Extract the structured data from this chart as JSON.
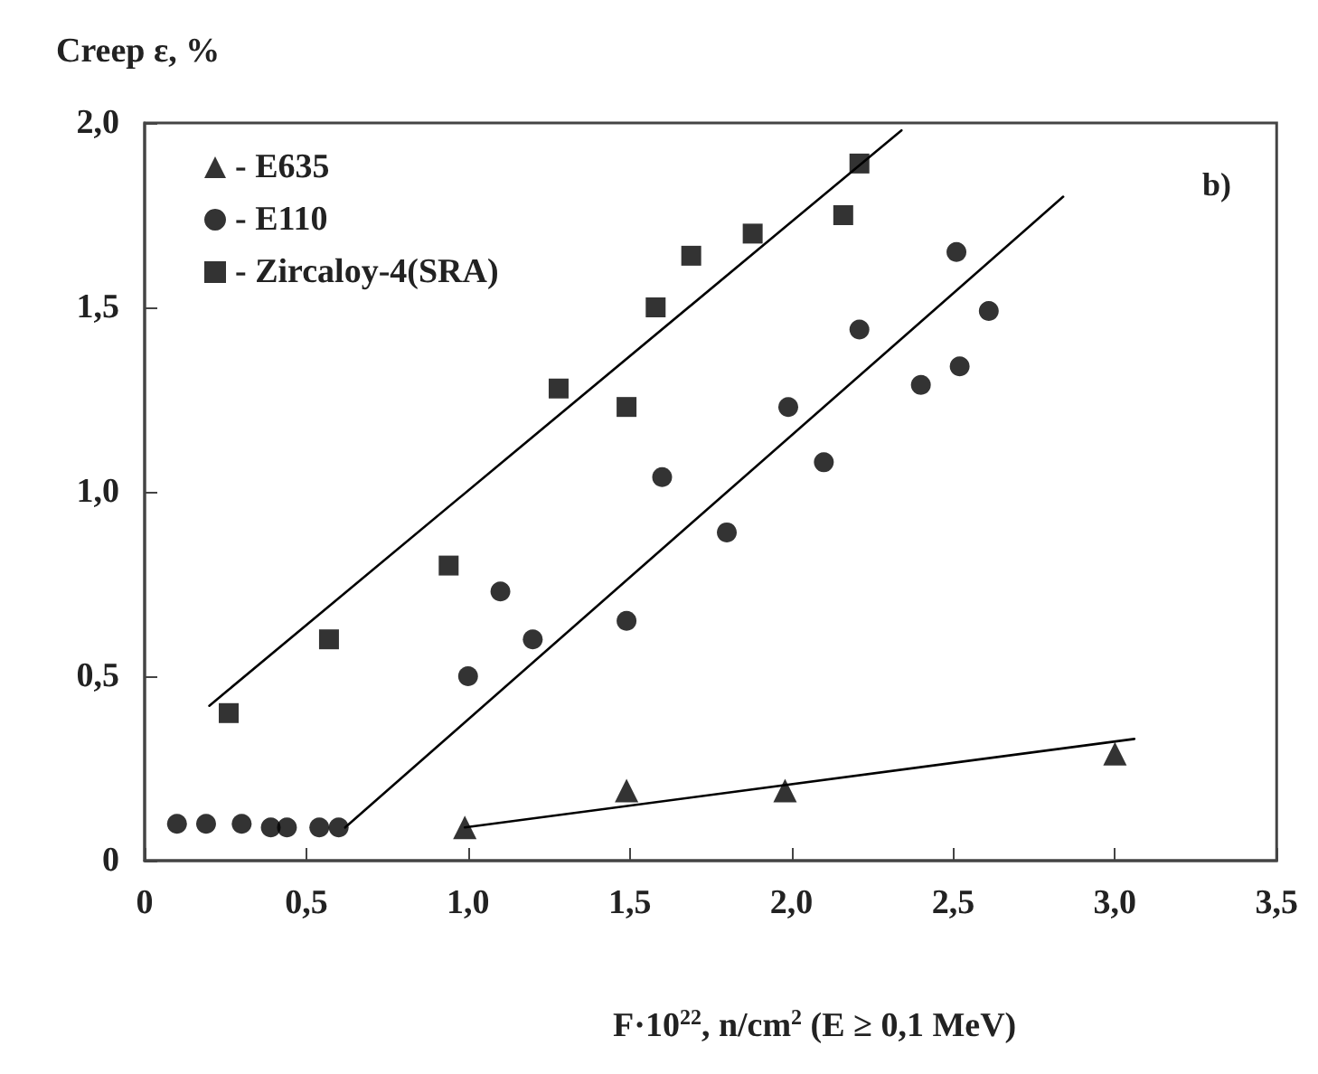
{
  "chart_data": {
    "type": "scatter",
    "ylabel": "Creep ε, %",
    "xlabel": "F·10$^{22}$, n/cm$^{2}$ (E ≥ 0,1 MeV)",
    "annotations": [
      "b)"
    ],
    "xlim": [
      0,
      3.5
    ],
    "xticks": [
      0,
      {
        "value": 0.5,
        "label": "0,5"
      },
      {
        "value": 1,
        "label": "1,0"
      },
      {
        "value": 1.5,
        "label": "1,5"
      },
      {
        "value": 2,
        "label": "2,0"
      },
      {
        "value": 2.5,
        "label": "2,5"
      },
      {
        "value": 3,
        "label": "3,0"
      },
      {
        "value": 3.5,
        "label": "3,5"
      }
    ],
    "ylim": [
      0,
      2
    ],
    "yticks": [
      0,
      {
        "value": 0.5,
        "label": "0,5"
      },
      {
        "value": 1,
        "label": "1,0"
      },
      {
        "value": 1.5,
        "label": "1,5"
      },
      {
        "value": 2,
        "label": "2,0"
      }
    ],
    "grid": false,
    "legend": "top left",
    "series": [
      {
        "name": "- E635",
        "color": "#000000",
        "marker": "triangle",
        "x": [
          0.99,
          1.49,
          1.98,
          3.0
        ],
        "values": [
          0.09,
          0.19,
          0.19,
          0.29
        ]
      },
      {
        "name": "- E110",
        "color": "#000000",
        "marker": "circle",
        "x": [
          0.1,
          0.19,
          0.3,
          0.39,
          0.44,
          0.54,
          0.6,
          1.0,
          1.1,
          1.2,
          1.49,
          1.6,
          1.8,
          1.99,
          2.1,
          2.21,
          2.4,
          2.52,
          2.51,
          2.61
        ],
        "values": [
          0.1,
          0.1,
          0.1,
          0.09,
          0.09,
          0.09,
          0.09,
          0.5,
          0.73,
          0.6,
          0.65,
          1.04,
          0.89,
          1.23,
          1.08,
          1.44,
          1.29,
          1.34,
          1.65,
          1.49
        ]
      },
      {
        "name": "- Zircaloy-4(SRA)",
        "color": "#000000",
        "marker": "square",
        "x": [
          0.26,
          0.57,
          0.94,
          1.28,
          1.49,
          1.58,
          1.69,
          1.88,
          2.16,
          2.21
        ],
        "values": [
          0.4,
          0.6,
          0.8,
          1.28,
          1.23,
          1.5,
          1.64,
          1.7,
          1.75,
          1.89
        ]
      },
      {
        "type": "line",
        "color": "#000000",
        "marker": "none",
        "line_style": "solid",
        "x": [
          0.2,
          2.34
        ],
        "values": [
          0.42,
          1.98
        ]
      },
      {
        "type": "line",
        "color": "#000000",
        "marker": "none",
        "line_style": "solid",
        "x": [
          0.62,
          2.84
        ],
        "values": [
          0.09,
          1.8
        ]
      },
      {
        "type": "line",
        "color": "#000000",
        "marker": "none",
        "line_style": "solid",
        "x": [
          0.99,
          3.06
        ],
        "values": [
          0.09,
          0.33
        ]
      }
    ]
  }
}
